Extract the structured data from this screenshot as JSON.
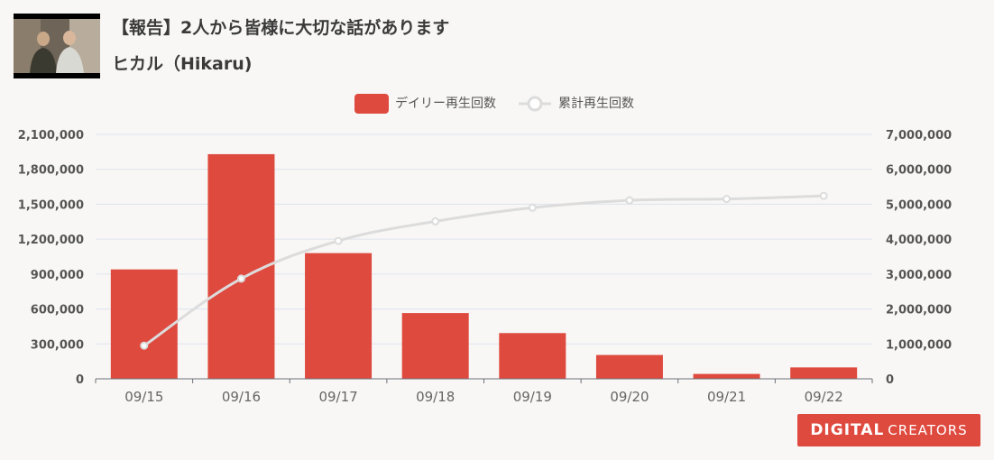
{
  "video": {
    "title": "【報告】2人から皆様に大切な話があります",
    "channel": "ヒカル（Hikaru)"
  },
  "branding": {
    "text_bold": "DIGITAL",
    "text_light": "CREATORS",
    "color": "#df4a3f"
  },
  "chart_data": {
    "type": "bar+line",
    "categories": [
      "09/15",
      "09/16",
      "09/17",
      "09/18",
      "09/19",
      "09/20",
      "09/21",
      "09/22"
    ],
    "series": [
      {
        "name": "デイリー再生回数",
        "type": "bar",
        "axis": "left",
        "color": "#df4a3f",
        "values": [
          940000,
          1930000,
          1080000,
          565000,
          393000,
          205000,
          42000,
          98000
        ]
      },
      {
        "name": "累計再生回数",
        "type": "line",
        "axis": "right",
        "color": "#dcdcdc",
        "values": [
          950000,
          2870000,
          3950000,
          4510000,
          4900000,
          5110000,
          5150000,
          5240000
        ]
      }
    ],
    "y_left": {
      "min": 0,
      "max": 2100000,
      "ticks": [
        "0",
        "300,000",
        "600,000",
        "900,000",
        "1,200,000",
        "1,500,000",
        "1,800,000",
        "2,100,000"
      ]
    },
    "y_right": {
      "min": 0,
      "max": 7000000,
      "ticks": [
        "0",
        "1,000,000",
        "2,000,000",
        "3,000,000",
        "4,000,000",
        "5,000,000",
        "6,000,000",
        "7,000,000"
      ]
    },
    "grid": true,
    "legend": "top-center"
  }
}
